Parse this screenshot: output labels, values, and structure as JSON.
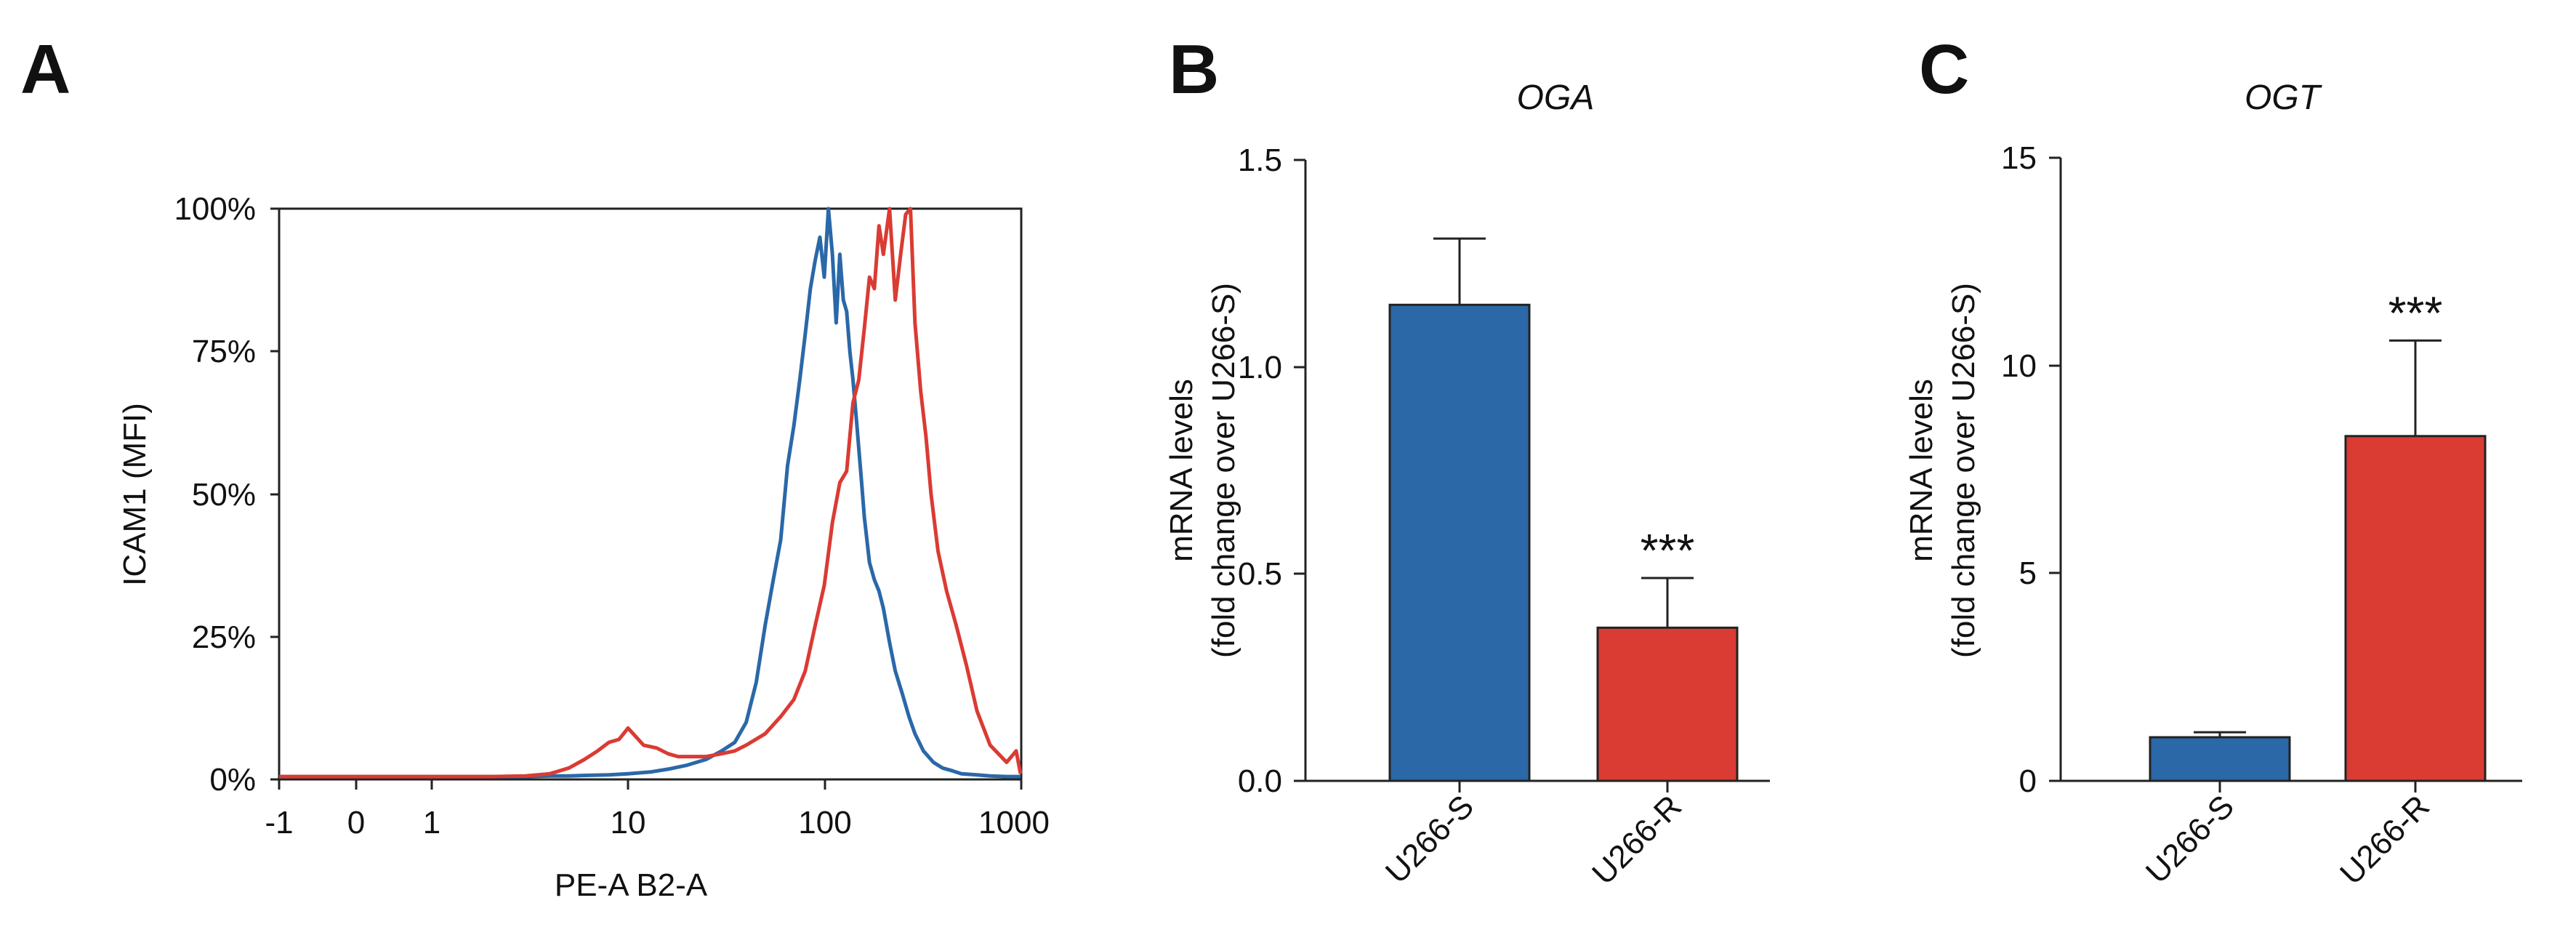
{
  "colors": {
    "blue": "#2a68a8",
    "red": "#da3b33",
    "axis": "#222222"
  },
  "chart_data": [
    {
      "panel": "A",
      "type": "line",
      "title": "",
      "xlabel": "PE-A B2-A",
      "ylabel": "ICAM1 (MFI)",
      "xscale": "biexponential",
      "xticks": [
        "-1",
        "0",
        "1",
        "10",
        "100",
        "1000"
      ],
      "yticks": [
        "0%",
        "25%",
        "50%",
        "75%",
        "100%"
      ],
      "ylim": [
        0,
        100
      ],
      "series": [
        {
          "name": "U266-S",
          "color": "#2a68a8",
          "x": [
            -1,
            0,
            1,
            2,
            3,
            4,
            5,
            6,
            8,
            10,
            13,
            16,
            20,
            25,
            30,
            35,
            40,
            45,
            50,
            55,
            60,
            65,
            70,
            75,
            80,
            85,
            90,
            95,
            100,
            105,
            110,
            115,
            120,
            125,
            130,
            135,
            140,
            145,
            150,
            155,
            160,
            170,
            180,
            190,
            200,
            215,
            230,
            250,
            270,
            290,
            320,
            360,
            400,
            450,
            500,
            600,
            700,
            850,
            1000
          ],
          "y": [
            0.5,
            0.5,
            0.5,
            0.5,
            0.5,
            0.6,
            0.6,
            0.7,
            0.8,
            1.0,
            1.3,
            1.8,
            2.5,
            3.5,
            5,
            6.5,
            10,
            17,
            27,
            35,
            42,
            55,
            62,
            70,
            78,
            86,
            91,
            95,
            88,
            100,
            92,
            80,
            92,
            84,
            82,
            75,
            70,
            64,
            58,
            52,
            46,
            38,
            35,
            33,
            30,
            24,
            19,
            15,
            11,
            8,
            5,
            3,
            2,
            1.5,
            1,
            0.8,
            0.6,
            0.5,
            0.5
          ]
        },
        {
          "name": "U266-R",
          "color": "#da3b33",
          "x": [
            -1,
            0,
            1,
            2,
            3,
            4,
            5,
            6,
            7,
            8,
            9,
            10,
            12,
            14,
            16,
            18,
            20,
            25,
            30,
            35,
            40,
            50,
            60,
            70,
            80,
            90,
            100,
            110,
            120,
            130,
            140,
            150,
            160,
            170,
            180,
            190,
            200,
            215,
            230,
            245,
            260,
            275,
            290,
            310,
            330,
            350,
            380,
            420,
            470,
            530,
            600,
            700,
            850,
            950,
            1000
          ],
          "y": [
            0.5,
            0.5,
            0.5,
            0.5,
            0.6,
            1.0,
            2.0,
            3.5,
            5.0,
            6.5,
            7.0,
            9.0,
            6.0,
            5.5,
            4.5,
            4.0,
            4.0,
            4.0,
            4.5,
            5.0,
            6.0,
            8.0,
            11,
            14,
            19,
            27,
            34,
            45,
            52,
            54,
            66,
            70,
            79,
            88,
            86,
            97,
            92,
            100,
            84,
            92,
            99,
            100,
            80,
            68,
            60,
            50,
            40,
            33,
            27,
            20,
            12,
            6,
            3,
            5,
            1
          ]
        }
      ]
    },
    {
      "panel": "B",
      "type": "bar",
      "title": "OGA",
      "ylabel_line1": "mRNA levels",
      "ylabel_line2": "(fold change over U266-S)",
      "categories": [
        "U266-S",
        "U266-R"
      ],
      "values": [
        1.15,
        0.37
      ],
      "errors": [
        0.16,
        0.12
      ],
      "significance": [
        "",
        "***"
      ],
      "ylim": [
        0,
        1.5
      ],
      "yticks": [
        "0.0",
        "0.5",
        "1.0",
        "1.5"
      ]
    },
    {
      "panel": "C",
      "type": "bar",
      "title": "OGT",
      "ylabel_line1": "mRNA levels",
      "ylabel_line2": "(fold change over U266-S)",
      "categories": [
        "U266-S",
        "U266-R"
      ],
      "values": [
        1.05,
        8.3
      ],
      "errors": [
        0.12,
        2.3
      ],
      "significance": [
        "",
        "***"
      ],
      "ylim": [
        0,
        15
      ],
      "yticks": [
        "0",
        "5",
        "10",
        "15"
      ]
    }
  ]
}
